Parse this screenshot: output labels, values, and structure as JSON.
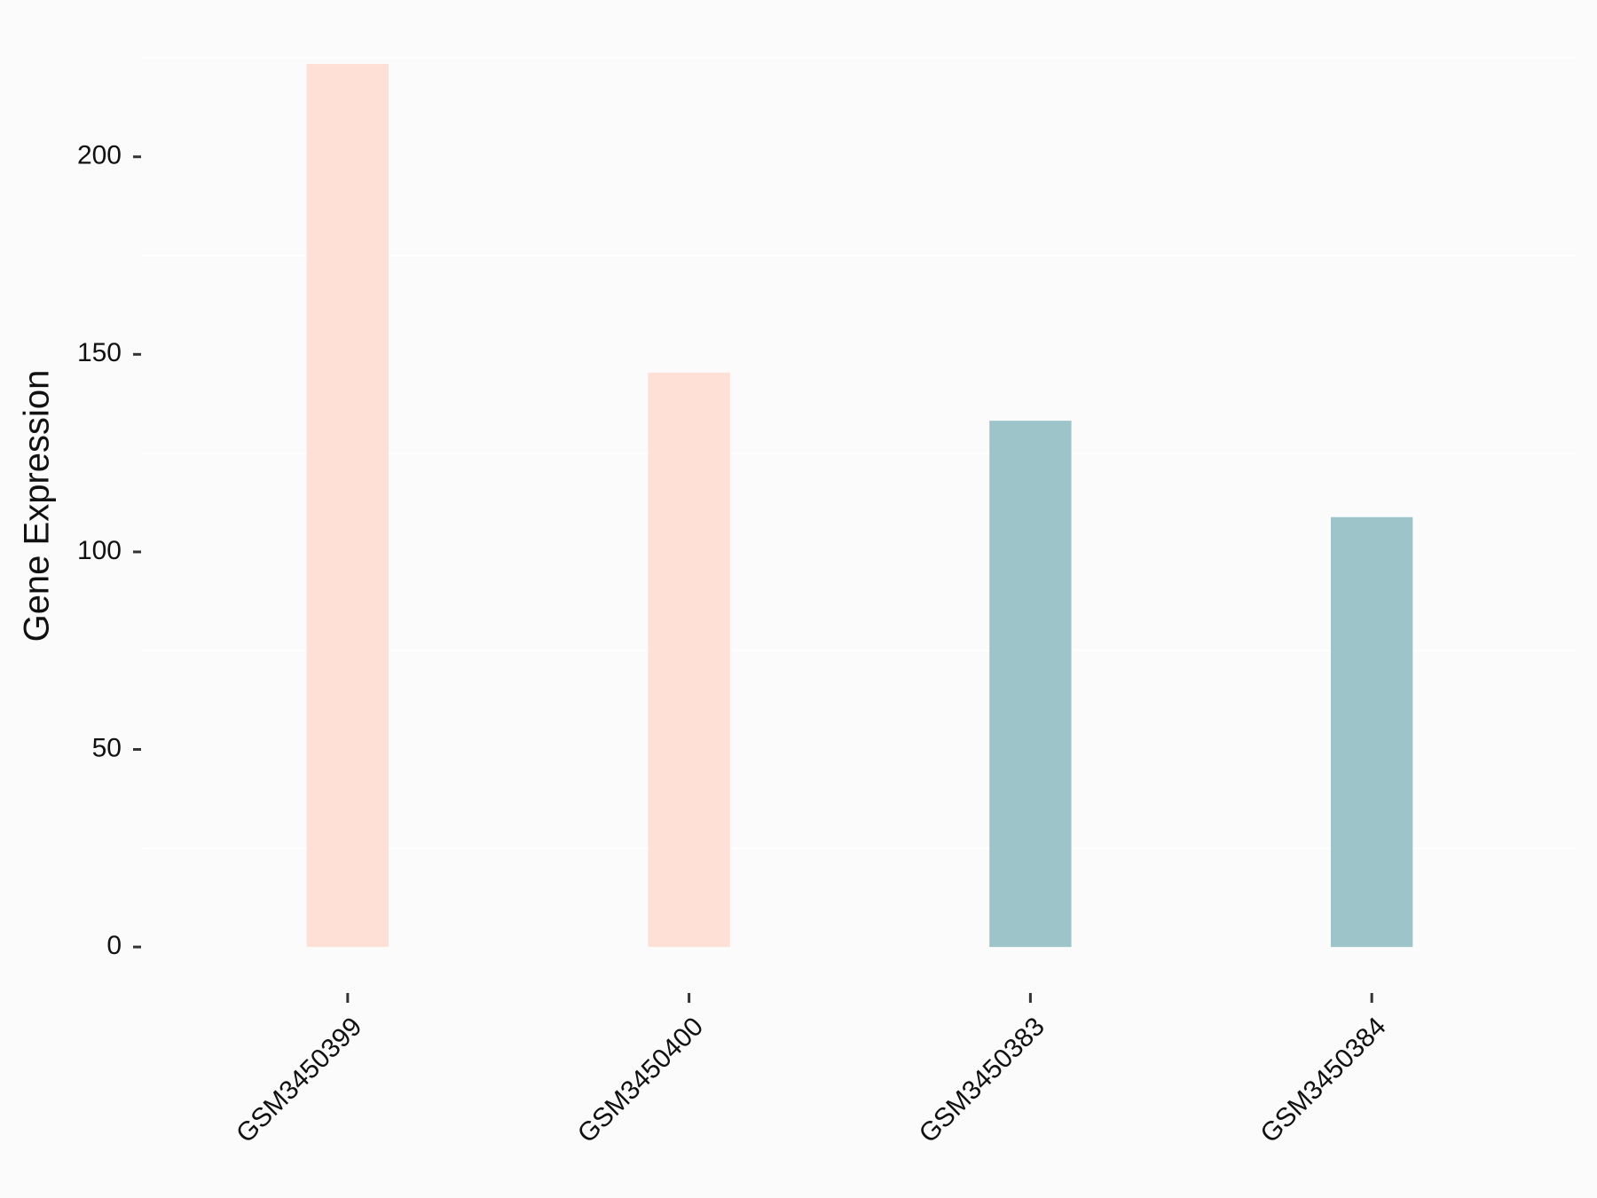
{
  "chart_data": {
    "type": "bar",
    "y_label": "Gene Expression",
    "categories": [
      "GSM3450399",
      "GSM3450400",
      "GSM3450383",
      "GSM3450384"
    ],
    "values": [
      223.5,
      145.4,
      133.2,
      108.8
    ],
    "colors": [
      "#ffe0d6",
      "#ffe0d6",
      "#9dc4c8",
      "#9dc4c8"
    ],
    "ylim": [
      -11.2,
      234.3
    ],
    "yticks": [
      0,
      50,
      100,
      150,
      200
    ],
    "grid": true
  }
}
